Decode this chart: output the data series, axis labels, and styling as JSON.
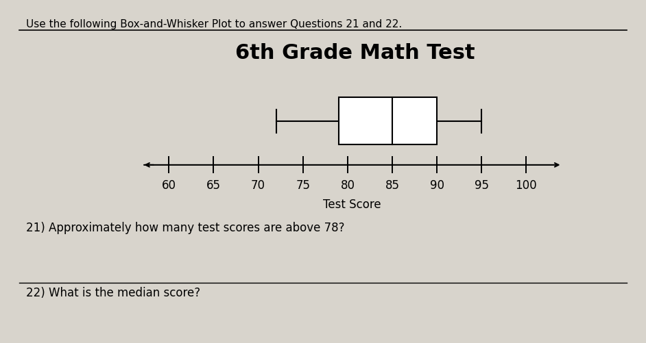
{
  "title": "6th Grade Math Test",
  "xlabel": "Test Score",
  "instruction": "Use the following Box-and-Whisker Plot to answer Questions 21 and 22.",
  "q21": "21) Approximately how many test scores are above 78?",
  "q22": "22) What is the median score?",
  "whisker_min": 72,
  "q1": 79,
  "median": 85,
  "q3": 90,
  "whisker_max": 95,
  "axis_min": 57,
  "axis_max": 104,
  "ticks": [
    60,
    65,
    70,
    75,
    80,
    85,
    90,
    95,
    100
  ],
  "box_color": "white",
  "box_edgecolor": "black",
  "line_color": "black",
  "background_color": "#d8d4cc",
  "title_fontsize": 22,
  "label_fontsize": 12,
  "instruction_fontsize": 11,
  "question_fontsize": 12,
  "tick_fontsize": 12
}
